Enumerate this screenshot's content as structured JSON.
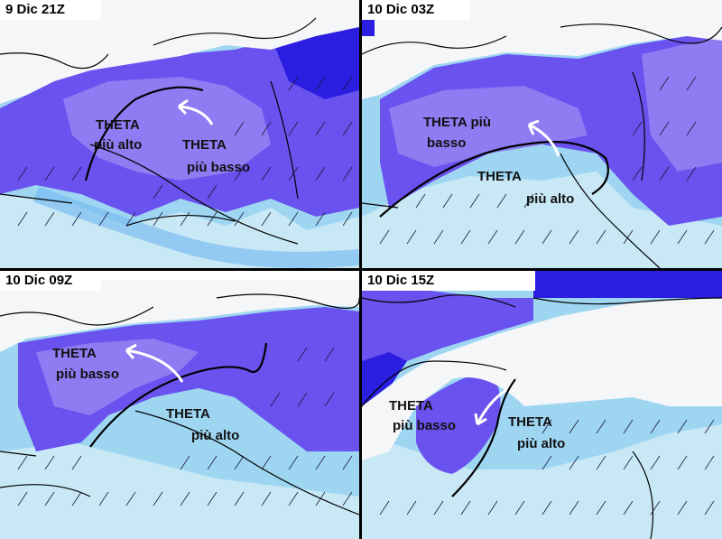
{
  "colors": {
    "deep_blue": "#2a1ee0",
    "purple": "#6a52ef",
    "light_purple": "#8d7cf2",
    "blue": "#4a86ec",
    "light_blue": "#6fb6f0",
    "cyan": "#9ed6f2",
    "pale": "#c9e8f6",
    "land_white": "#f4f6f8",
    "arrow_white": "#ffffff",
    "line": "#000000"
  },
  "panels": [
    {
      "title": "9 Dic 21Z",
      "labels": [
        {
          "line1": "THETA",
          "line2": "più alto"
        },
        {
          "line1": "THETA",
          "line2": "più basso"
        }
      ]
    },
    {
      "title": "10 Dic 03Z",
      "labels": [
        {
          "line1": "THETA più",
          "line2": "basso"
        },
        {
          "line1": "THETA",
          "line2": "più alto"
        }
      ]
    },
    {
      "title": "10 Dic 09Z",
      "labels": [
        {
          "line1": "THETA",
          "line2": "più basso"
        },
        {
          "line1": "THETA",
          "line2": "più alto"
        }
      ]
    },
    {
      "title": "10 Dic 15Z",
      "labels": [
        {
          "line1": "THETA",
          "line2": "più basso"
        },
        {
          "line1": "THETA",
          "line2": "più alto"
        }
      ]
    }
  ]
}
